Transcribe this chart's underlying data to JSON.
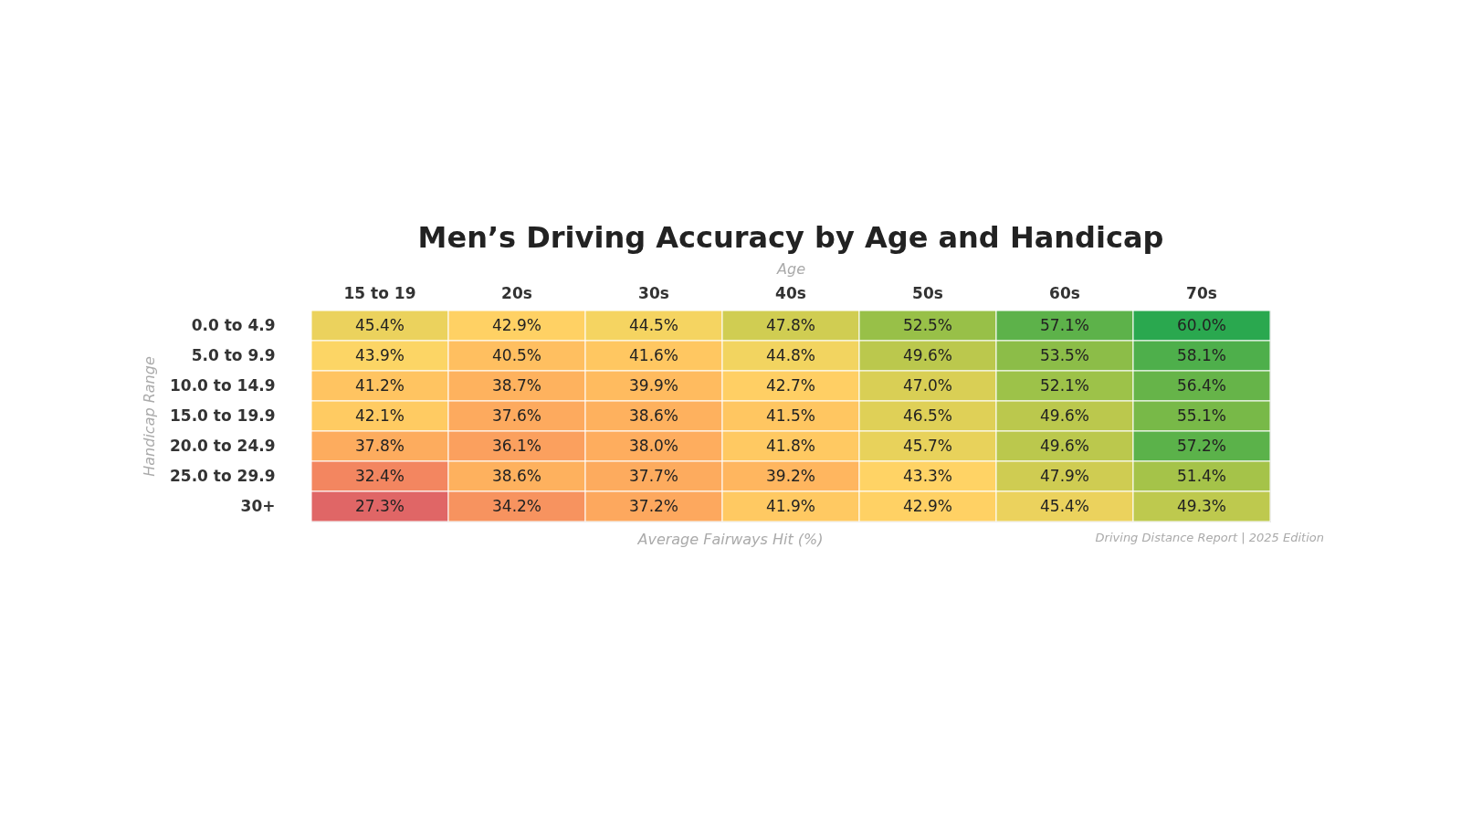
{
  "chart_data": {
    "type": "heatmap",
    "title": "Men’s Driving Accuracy by Age and Handicap",
    "xlabel": "Age",
    "ylabel": "Handicap Range",
    "categories": [
      "15 to 19",
      "20s",
      "30s",
      "40s",
      "50s",
      "60s",
      "70s"
    ],
    "y_categories": [
      "0.0 to 4.9",
      "5.0 to 9.9",
      "10.0 to 14.9",
      "15.0 to 19.9",
      "20.0 to 24.9",
      "25.0 to 29.9",
      "30+"
    ],
    "cells": [
      [
        45.4,
        42.9,
        44.5,
        47.8,
        52.5,
        57.1,
        60.0
      ],
      [
        43.9,
        40.5,
        41.6,
        44.8,
        49.6,
        53.5,
        58.1
      ],
      [
        41.2,
        38.7,
        39.9,
        42.7,
        47.0,
        52.1,
        56.4
      ],
      [
        42.1,
        37.6,
        38.6,
        41.5,
        46.5,
        49.6,
        55.1
      ],
      [
        37.8,
        36.1,
        38.0,
        41.8,
        45.7,
        49.6,
        57.2
      ],
      [
        32.4,
        38.6,
        37.7,
        39.2,
        43.3,
        47.9,
        51.4
      ],
      [
        27.3,
        34.2,
        37.2,
        41.9,
        42.9,
        45.4,
        49.3
      ]
    ],
    "cell_labels": [
      [
        "45.4%",
        "42.9%",
        "44.5%",
        "47.8%",
        "52.5%",
        "57.1%",
        "60.0%"
      ],
      [
        "43.9%",
        "40.5%",
        "41.6%",
        "44.8%",
        "49.6%",
        "53.5%",
        "58.1%"
      ],
      [
        "41.2%",
        "38.7%",
        "39.9%",
        "42.7%",
        "47.0%",
        "52.1%",
        "56.4%"
      ],
      [
        "42.1%",
        "37.6%",
        "38.6%",
        "41.5%",
        "46.5%",
        "49.6%",
        "55.1%"
      ],
      [
        "37.8%",
        "36.1%",
        "38.0%",
        "41.8%",
        "45.7%",
        "49.6%",
        "57.2%"
      ],
      [
        "32.4%",
        "38.6%",
        "37.7%",
        "39.2%",
        "43.3%",
        "47.9%",
        "51.4%"
      ],
      [
        "27.3%",
        "34.2%",
        "37.2%",
        "41.9%",
        "42.9%",
        "45.4%",
        "49.3%"
      ]
    ],
    "annotations": [
      "Average Fairways Hit (%)",
      "Driving Distance Report | 2025 Edition"
    ]
  }
}
